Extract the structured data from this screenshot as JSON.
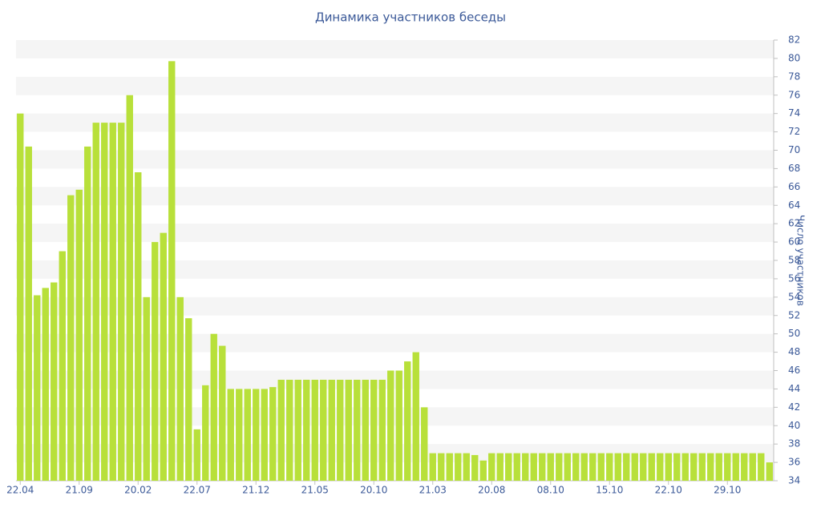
{
  "chart_data": {
    "type": "bar",
    "title": "Динамика участников беседы",
    "y_label": "Число участников",
    "categories": [
      "22.04",
      null,
      null,
      null,
      null,
      null,
      null,
      "21.09",
      null,
      null,
      null,
      null,
      null,
      null,
      "20.02",
      null,
      null,
      null,
      null,
      null,
      null,
      "22.07",
      null,
      null,
      null,
      null,
      null,
      null,
      "21.12",
      null,
      null,
      null,
      null,
      null,
      null,
      "21.05",
      null,
      null,
      null,
      null,
      null,
      null,
      "20.10",
      null,
      null,
      null,
      null,
      null,
      null,
      "21.03",
      null,
      null,
      null,
      null,
      null,
      null,
      "20.08",
      null,
      null,
      null,
      null,
      null,
      null,
      "08.10",
      null,
      null,
      null,
      null,
      null,
      null,
      "15.10",
      null,
      null,
      null,
      null,
      null,
      null,
      "22.10",
      null,
      null,
      null,
      null,
      null,
      null,
      "29.10",
      null,
      null,
      null,
      null,
      null
    ],
    "values": [
      74,
      70.4,
      54.2,
      55,
      55.6,
      59,
      65.1,
      65.7,
      70.4,
      73,
      73,
      73,
      73,
      76,
      67.6,
      54,
      60,
      61,
      79.7,
      54,
      51.7,
      39.6,
      44.4,
      50,
      48.7,
      44,
      44,
      44,
      44,
      44,
      44.2,
      45,
      45,
      45,
      45,
      45,
      45,
      45,
      45,
      45,
      45,
      45,
      45,
      45,
      46,
      46,
      47,
      48,
      42,
      37,
      37,
      37,
      37,
      37,
      36.8,
      36.2,
      37,
      37,
      37,
      37,
      37,
      37,
      37,
      37,
      37,
      37,
      37,
      37,
      37,
      37,
      37,
      37,
      37,
      37,
      37,
      37,
      37,
      37,
      37,
      37,
      37,
      37,
      37,
      37,
      37,
      37,
      37,
      37,
      37,
      36
    ],
    "color": "#b8e03a",
    "ylim": [
      34,
      82
    ],
    "yticks": [
      34,
      36,
      38,
      40,
      42,
      44,
      46,
      48,
      50,
      52,
      54,
      56,
      58,
      60,
      62,
      64,
      66,
      68,
      70,
      72,
      74,
      76,
      78,
      80,
      82
    ],
    "grid": true
  }
}
